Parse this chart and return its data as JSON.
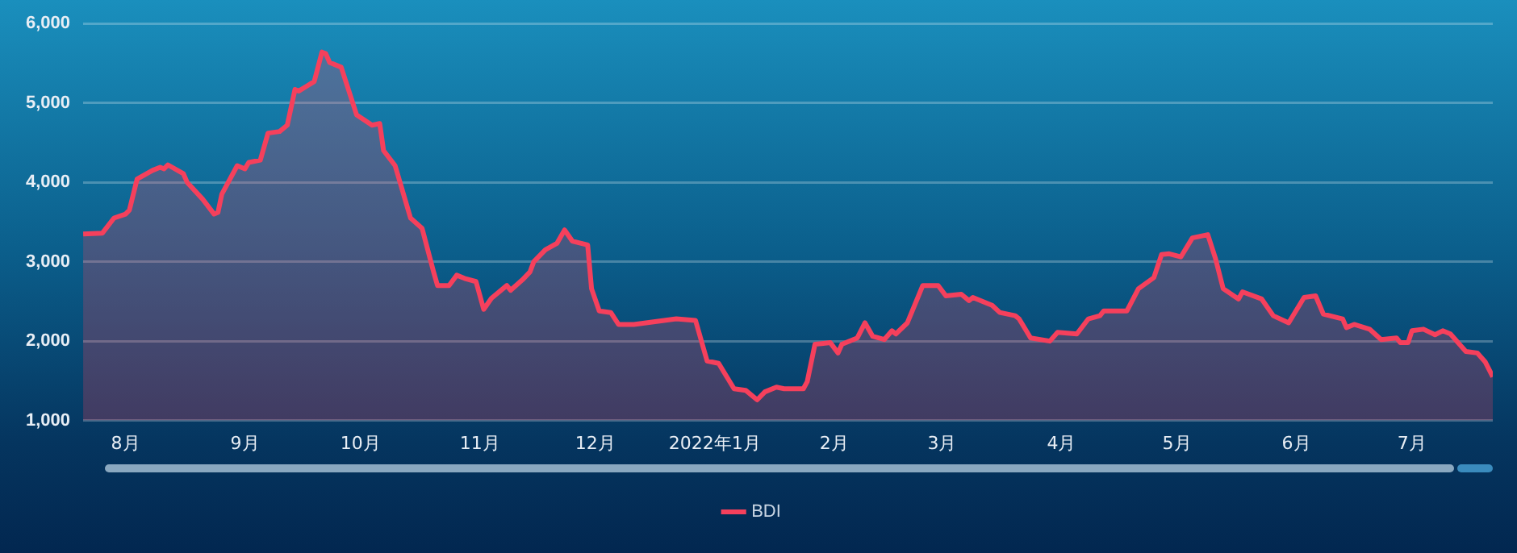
{
  "chart_data": {
    "type": "area",
    "x": [
      "2021-07-21",
      "2021-07-26",
      "2021-07-29",
      "2021-08-01",
      "2021-08-02",
      "2021-08-04",
      "2021-08-08",
      "2021-08-10",
      "2021-08-11",
      "2021-08-12",
      "2021-08-16",
      "2021-08-17",
      "2021-08-21",
      "2021-08-24",
      "2021-08-25",
      "2021-08-26",
      "2021-08-30",
      "2021-09-01",
      "2021-09-02",
      "2021-09-05",
      "2021-09-07",
      "2021-09-10",
      "2021-09-12",
      "2021-09-14",
      "2021-09-15",
      "2021-09-17",
      "2021-09-19",
      "2021-09-21",
      "2021-09-22",
      "2021-09-23",
      "2021-09-26",
      "2021-09-30",
      "2021-10-04",
      "2021-10-06",
      "2021-10-07",
      "2021-10-10",
      "2021-10-14",
      "2021-10-17",
      "2021-10-20",
      "2021-10-21",
      "2021-10-24",
      "2021-10-26",
      "2021-10-28",
      "2021-10-31",
      "2021-11-02",
      "2021-11-04",
      "2021-11-08",
      "2021-11-09",
      "2021-11-12",
      "2021-11-14",
      "2021-11-15",
      "2021-11-18",
      "2021-11-21",
      "2021-11-23",
      "2021-11-25",
      "2021-11-29",
      "2021-11-30",
      "2021-12-02",
      "2021-12-05",
      "2021-12-07",
      "2021-12-11",
      "2021-12-22",
      "2021-12-27",
      "2021-12-30",
      "2022-01-02",
      "2022-01-06",
      "2022-01-09",
      "2022-01-12",
      "2022-01-14",
      "2022-01-17",
      "2022-01-19",
      "2022-01-24",
      "2022-01-25",
      "2022-01-27",
      "2022-01-31",
      "2022-02-02",
      "2022-02-03",
      "2022-02-07",
      "2022-02-09",
      "2022-02-11",
      "2022-02-14",
      "2022-02-16",
      "2022-02-17",
      "2022-02-20",
      "2022-02-24",
      "2022-02-28",
      "2022-03-02",
      "2022-03-06",
      "2022-03-08",
      "2022-03-09",
      "2022-03-14",
      "2022-03-16",
      "2022-03-20",
      "2022-03-21",
      "2022-03-24",
      "2022-03-29",
      "2022-03-31",
      "2022-04-05",
      "2022-04-08",
      "2022-04-11",
      "2022-04-12",
      "2022-04-18",
      "2022-04-21",
      "2022-04-25",
      "2022-04-27",
      "2022-04-29",
      "2022-05-02",
      "2022-05-05",
      "2022-05-09",
      "2022-05-11",
      "2022-05-13",
      "2022-05-17",
      "2022-05-18",
      "2022-05-23",
      "2022-05-26",
      "2022-05-30",
      "2022-06-03",
      "2022-06-06",
      "2022-06-08",
      "2022-06-13",
      "2022-06-14",
      "2022-06-16",
      "2022-06-20",
      "2022-06-23",
      "2022-06-27",
      "2022-06-28",
      "2022-06-30",
      "2022-07-01",
      "2022-07-04",
      "2022-07-07",
      "2022-07-09",
      "2022-07-11",
      "2022-07-15",
      "2022-07-18",
      "2022-07-20",
      "2022-07-22"
    ],
    "series": [
      {
        "name": "BDI",
        "color": "#f5405c",
        "values": [
          3350,
          3360,
          3550,
          3600,
          3650,
          4040,
          4150,
          4190,
          4170,
          4220,
          4110,
          4000,
          3790,
          3600,
          3620,
          3850,
          4210,
          4170,
          4250,
          4280,
          4620,
          4640,
          4720,
          5170,
          5150,
          5210,
          5270,
          5640,
          5620,
          5510,
          5450,
          4850,
          4720,
          4740,
          4400,
          4210,
          3550,
          3420,
          2870,
          2700,
          2700,
          2830,
          2790,
          2750,
          2400,
          2540,
          2700,
          2640,
          2770,
          2870,
          3000,
          3150,
          3230,
          3400,
          3260,
          3210,
          2660,
          2380,
          2360,
          2210,
          2210,
          2280,
          2260,
          1750,
          1720,
          1400,
          1380,
          1260,
          1360,
          1420,
          1400,
          1400,
          1490,
          1960,
          1980,
          1850,
          1960,
          2040,
          2230,
          2060,
          2020,
          2130,
          2090,
          2230,
          2700,
          2700,
          2570,
          2590,
          2510,
          2550,
          2450,
          2360,
          2320,
          2280,
          2040,
          2000,
          2110,
          2090,
          2280,
          2320,
          2380,
          2380,
          2660,
          2800,
          3090,
          3100,
          3060,
          3300,
          3340,
          3040,
          2660,
          2530,
          2620,
          2530,
          2320,
          2230,
          2550,
          2570,
          2340,
          2280,
          2170,
          2210,
          2150,
          2020,
          2040,
          1980,
          1980,
          2130,
          2150,
          2080,
          2130,
          2090,
          1870,
          1850,
          1740,
          1550
        ]
      }
    ],
    "xlim": [
      "2021-07-21",
      "2022-07-22"
    ],
    "xticks": [
      {
        "value": "2021-08-01",
        "label": "8月"
      },
      {
        "value": "2021-09-01",
        "label": "9月"
      },
      {
        "value": "2021-10-01",
        "label": "10月"
      },
      {
        "value": "2021-11-01",
        "label": "11月"
      },
      {
        "value": "2021-12-01",
        "label": "12月"
      },
      {
        "value": "2022-01-01",
        "label": "2022年1月"
      },
      {
        "value": "2022-02-01",
        "label": "2月"
      },
      {
        "value": "2022-03-01",
        "label": "3月"
      },
      {
        "value": "2022-04-01",
        "label": "4月"
      },
      {
        "value": "2022-05-01",
        "label": "5月"
      },
      {
        "value": "2022-06-01",
        "label": "6月"
      },
      {
        "value": "2022-07-01",
        "label": "7月"
      }
    ],
    "ylim": [
      1000,
      6000
    ],
    "yticks": [
      {
        "value": 1000,
        "label": "1,000"
      },
      {
        "value": 2000,
        "label": "2,000"
      },
      {
        "value": 3000,
        "label": "3,000"
      },
      {
        "value": 4000,
        "label": "4,000"
      },
      {
        "value": 5000,
        "label": "5,000"
      },
      {
        "value": 6000,
        "label": "6,000"
      }
    ],
    "grid": "y",
    "legend": "bottom"
  }
}
